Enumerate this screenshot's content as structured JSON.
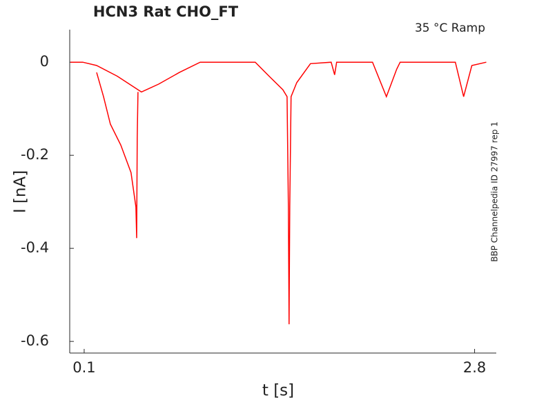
{
  "chart_data": {
    "type": "line",
    "title": "HCN3  Rat  CHO_FT",
    "annotation": "35 °C  Ramp",
    "side_label": "BBP Channelpedia ID 27997 rep 1",
    "x_label": "t [s]",
    "y_label": "I [nA]",
    "xlim": [
      0,
      2.95
    ],
    "ylim": [
      -0.625,
      0.07
    ],
    "xticks": [
      0.1,
      2.8
    ],
    "yticks": [
      0,
      -0.2,
      -0.4,
      -0.6
    ],
    "series": [
      {
        "color": "#ff0000",
        "x": [
          0.005,
          0.09,
          0.186,
          0.329,
          0.472,
          0.496,
          0.615,
          0.758,
          0.902,
          1.283,
          1.379,
          1.474,
          1.503,
          1.512,
          1.517,
          1.522,
          1.531,
          1.57,
          1.665,
          1.808,
          1.832,
          1.846,
          2.094,
          2.19,
          2.261,
          2.285,
          2.667,
          2.724,
          2.781,
          2.881
        ],
        "values": [
          0,
          0,
          -0.007,
          -0.03,
          -0.059,
          -0.064,
          -0.047,
          -0.022,
          0,
          0,
          -0.03,
          -0.059,
          -0.074,
          -0.311,
          -0.563,
          -0.311,
          -0.074,
          -0.044,
          -0.003,
          0,
          -0.027,
          0,
          0,
          -0.074,
          -0.015,
          0,
          0,
          -0.074,
          -0.007,
          0
        ]
      },
      {
        "color": "#ff0000",
        "x": [
          0.186,
          0.234,
          0.281,
          0.353,
          0.424,
          0.458,
          0.463,
          0.467,
          0.472
        ],
        "values": [
          -0.022,
          -0.074,
          -0.133,
          -0.178,
          -0.237,
          -0.311,
          -0.378,
          -0.163,
          -0.064
        ]
      }
    ]
  }
}
